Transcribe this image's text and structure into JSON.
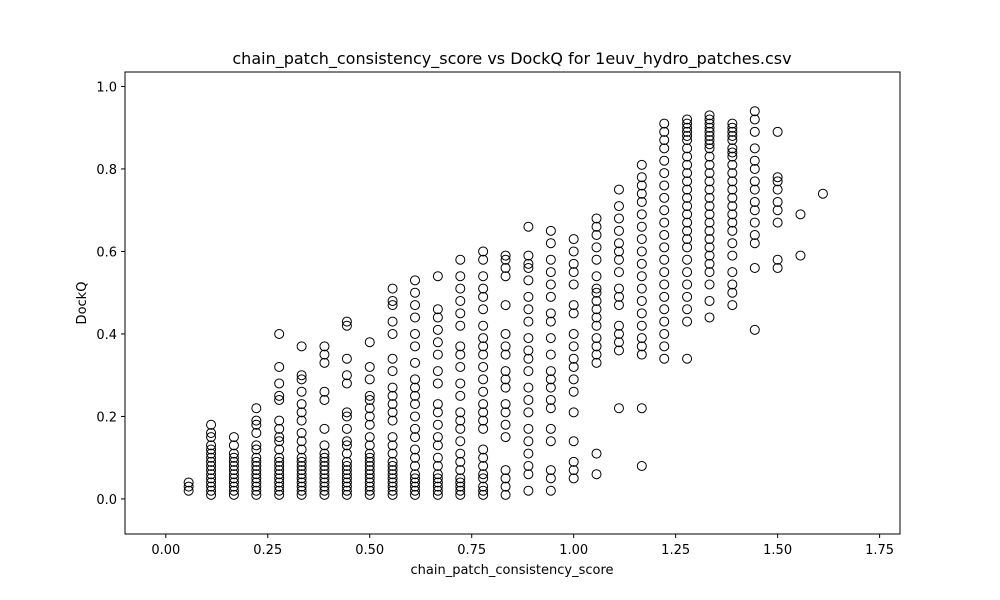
{
  "chart_data": {
    "type": "scatter",
    "title": "chain_patch_consistency_score vs DockQ for 1euv_hydro_patches.csv",
    "xlabel": "chain_patch_consistency_score",
    "ylabel": "DockQ",
    "xlim": [
      -0.1,
      1.8
    ],
    "ylim": [
      -0.085,
      1.035
    ],
    "xticks": [
      0.0,
      0.25,
      0.5,
      0.75,
      1.0,
      1.25,
      1.5,
      1.75
    ],
    "xtick_labels": [
      "0.00",
      "0.25",
      "0.50",
      "0.75",
      "1.00",
      "1.25",
      "1.50",
      "1.75"
    ],
    "yticks": [
      0.0,
      0.2,
      0.4,
      0.6,
      0.8,
      1.0
    ],
    "ytick_labels": [
      "0.0",
      "0.2",
      "0.4",
      "0.6",
      "0.8",
      "1.0"
    ],
    "grid": false,
    "marker": "open-circle",
    "marker_color": "#000000",
    "columns": [
      {
        "x": 0.056,
        "y": [
          0.02,
          0.03,
          0.04
        ]
      },
      {
        "x": 0.111,
        "y": [
          0.01,
          0.02,
          0.03,
          0.04,
          0.05,
          0.06,
          0.07,
          0.08,
          0.09,
          0.1,
          0.11,
          0.12,
          0.13,
          0.15,
          0.16,
          0.18
        ]
      },
      {
        "x": 0.167,
        "y": [
          0.01,
          0.02,
          0.03,
          0.04,
          0.05,
          0.06,
          0.07,
          0.08,
          0.09,
          0.1,
          0.11,
          0.13,
          0.15
        ]
      },
      {
        "x": 0.222,
        "y": [
          0.01,
          0.02,
          0.03,
          0.04,
          0.05,
          0.06,
          0.07,
          0.08,
          0.09,
          0.1,
          0.12,
          0.13,
          0.16,
          0.18,
          0.19,
          0.22
        ]
      },
      {
        "x": 0.278,
        "y": [
          0.01,
          0.02,
          0.03,
          0.04,
          0.05,
          0.06,
          0.07,
          0.08,
          0.09,
          0.1,
          0.12,
          0.14,
          0.15,
          0.17,
          0.19,
          0.24,
          0.25,
          0.28,
          0.32,
          0.4
        ]
      },
      {
        "x": 0.333,
        "y": [
          0.01,
          0.02,
          0.03,
          0.04,
          0.05,
          0.06,
          0.07,
          0.08,
          0.09,
          0.1,
          0.12,
          0.14,
          0.16,
          0.19,
          0.21,
          0.23,
          0.26,
          0.29,
          0.3,
          0.37
        ]
      },
      {
        "x": 0.389,
        "y": [
          0.01,
          0.02,
          0.03,
          0.04,
          0.05,
          0.06,
          0.07,
          0.08,
          0.09,
          0.1,
          0.11,
          0.13,
          0.17,
          0.24,
          0.26,
          0.33,
          0.35,
          0.37
        ]
      },
      {
        "x": 0.444,
        "y": [
          0.01,
          0.02,
          0.03,
          0.04,
          0.05,
          0.06,
          0.07,
          0.08,
          0.09,
          0.11,
          0.13,
          0.14,
          0.17,
          0.2,
          0.21,
          0.28,
          0.3,
          0.34,
          0.42,
          0.43
        ]
      },
      {
        "x": 0.5,
        "y": [
          0.01,
          0.02,
          0.03,
          0.04,
          0.05,
          0.06,
          0.07,
          0.08,
          0.09,
          0.1,
          0.11,
          0.13,
          0.15,
          0.18,
          0.2,
          0.22,
          0.24,
          0.25,
          0.29,
          0.32,
          0.38
        ]
      },
      {
        "x": 0.556,
        "y": [
          0.01,
          0.02,
          0.03,
          0.04,
          0.05,
          0.06,
          0.07,
          0.08,
          0.09,
          0.11,
          0.13,
          0.15,
          0.19,
          0.21,
          0.23,
          0.25,
          0.27,
          0.31,
          0.34,
          0.4,
          0.43,
          0.47,
          0.48,
          0.51
        ]
      },
      {
        "x": 0.611,
        "y": [
          0.01,
          0.02,
          0.03,
          0.04,
          0.05,
          0.06,
          0.08,
          0.1,
          0.12,
          0.15,
          0.17,
          0.2,
          0.23,
          0.25,
          0.27,
          0.29,
          0.33,
          0.37,
          0.4,
          0.44,
          0.47,
          0.5,
          0.53
        ]
      },
      {
        "x": 0.667,
        "y": [
          0.01,
          0.02,
          0.03,
          0.04,
          0.05,
          0.06,
          0.08,
          0.1,
          0.13,
          0.15,
          0.18,
          0.21,
          0.23,
          0.28,
          0.31,
          0.35,
          0.38,
          0.41,
          0.44,
          0.46,
          0.54
        ]
      },
      {
        "x": 0.722,
        "y": [
          0.01,
          0.02,
          0.03,
          0.04,
          0.05,
          0.07,
          0.09,
          0.11,
          0.14,
          0.17,
          0.19,
          0.21,
          0.25,
          0.28,
          0.32,
          0.35,
          0.37,
          0.42,
          0.45,
          0.48,
          0.51,
          0.54,
          0.58
        ]
      },
      {
        "x": 0.778,
        "y": [
          0.01,
          0.02,
          0.03,
          0.05,
          0.06,
          0.08,
          0.1,
          0.12,
          0.17,
          0.19,
          0.21,
          0.23,
          0.26,
          0.29,
          0.32,
          0.35,
          0.37,
          0.39,
          0.42,
          0.46,
          0.49,
          0.51,
          0.54,
          0.58,
          0.6
        ]
      },
      {
        "x": 0.833,
        "y": [
          0.01,
          0.03,
          0.05,
          0.07,
          0.15,
          0.18,
          0.21,
          0.23,
          0.27,
          0.29,
          0.31,
          0.35,
          0.37,
          0.4,
          0.47,
          0.54,
          0.56,
          0.58,
          0.59
        ]
      },
      {
        "x": 0.889,
        "y": [
          0.02,
          0.06,
          0.08,
          0.11,
          0.14,
          0.17,
          0.21,
          0.24,
          0.27,
          0.31,
          0.34,
          0.36,
          0.39,
          0.43,
          0.46,
          0.49,
          0.53,
          0.56,
          0.57,
          0.59,
          0.66
        ]
      },
      {
        "x": 0.944,
        "y": [
          0.02,
          0.05,
          0.07,
          0.14,
          0.17,
          0.22,
          0.24,
          0.27,
          0.29,
          0.31,
          0.35,
          0.39,
          0.43,
          0.45,
          0.49,
          0.52,
          0.55,
          0.58,
          0.62,
          0.65
        ]
      },
      {
        "x": 1.0,
        "y": [
          0.05,
          0.07,
          0.09,
          0.14,
          0.21,
          0.26,
          0.29,
          0.32,
          0.34,
          0.37,
          0.4,
          0.45,
          0.47,
          0.52,
          0.55,
          0.57,
          0.6,
          0.63
        ]
      },
      {
        "x": 1.056,
        "y": [
          0.06,
          0.11,
          0.33,
          0.35,
          0.37,
          0.39,
          0.42,
          0.44,
          0.46,
          0.48,
          0.5,
          0.51,
          0.54,
          0.58,
          0.61,
          0.64,
          0.66,
          0.68
        ]
      },
      {
        "x": 1.111,
        "y": [
          0.22,
          0.36,
          0.38,
          0.4,
          0.42,
          0.47,
          0.49,
          0.51,
          0.55,
          0.58,
          0.6,
          0.62,
          0.65,
          0.68,
          0.71,
          0.75
        ]
      },
      {
        "x": 1.167,
        "y": [
          0.08,
          0.22,
          0.35,
          0.37,
          0.39,
          0.42,
          0.45,
          0.48,
          0.51,
          0.54,
          0.57,
          0.6,
          0.63,
          0.66,
          0.69,
          0.72,
          0.74,
          0.76,
          0.78,
          0.81
        ]
      },
      {
        "x": 1.222,
        "y": [
          0.34,
          0.37,
          0.4,
          0.43,
          0.46,
          0.49,
          0.52,
          0.55,
          0.58,
          0.61,
          0.64,
          0.67,
          0.7,
          0.73,
          0.76,
          0.79,
          0.82,
          0.85,
          0.87,
          0.89,
          0.91
        ]
      },
      {
        "x": 1.278,
        "y": [
          0.34,
          0.43,
          0.46,
          0.49,
          0.52,
          0.55,
          0.58,
          0.61,
          0.63,
          0.65,
          0.67,
          0.69,
          0.71,
          0.73,
          0.75,
          0.77,
          0.79,
          0.81,
          0.83,
          0.85,
          0.87,
          0.88,
          0.89,
          0.9,
          0.91,
          0.92
        ]
      },
      {
        "x": 1.333,
        "y": [
          0.44,
          0.48,
          0.52,
          0.55,
          0.57,
          0.59,
          0.61,
          0.63,
          0.65,
          0.67,
          0.69,
          0.71,
          0.73,
          0.75,
          0.77,
          0.79,
          0.81,
          0.83,
          0.85,
          0.86,
          0.87,
          0.88,
          0.89,
          0.9,
          0.91,
          0.92,
          0.93
        ]
      },
      {
        "x": 1.389,
        "y": [
          0.47,
          0.5,
          0.52,
          0.55,
          0.59,
          0.62,
          0.65,
          0.67,
          0.69,
          0.71,
          0.73,
          0.75,
          0.77,
          0.79,
          0.81,
          0.83,
          0.84,
          0.85,
          0.87,
          0.88,
          0.89,
          0.9,
          0.91
        ]
      },
      {
        "x": 1.444,
        "y": [
          0.41,
          0.56,
          0.62,
          0.64,
          0.67,
          0.7,
          0.72,
          0.75,
          0.77,
          0.8,
          0.82,
          0.85,
          0.89,
          0.92,
          0.94
        ]
      },
      {
        "x": 1.5,
        "y": [
          0.56,
          0.58,
          0.67,
          0.7,
          0.72,
          0.75,
          0.77,
          0.78,
          0.89
        ]
      },
      {
        "x": 1.556,
        "y": [
          0.59,
          0.69
        ]
      },
      {
        "x": 1.611,
        "y": [
          0.74
        ]
      }
    ]
  }
}
